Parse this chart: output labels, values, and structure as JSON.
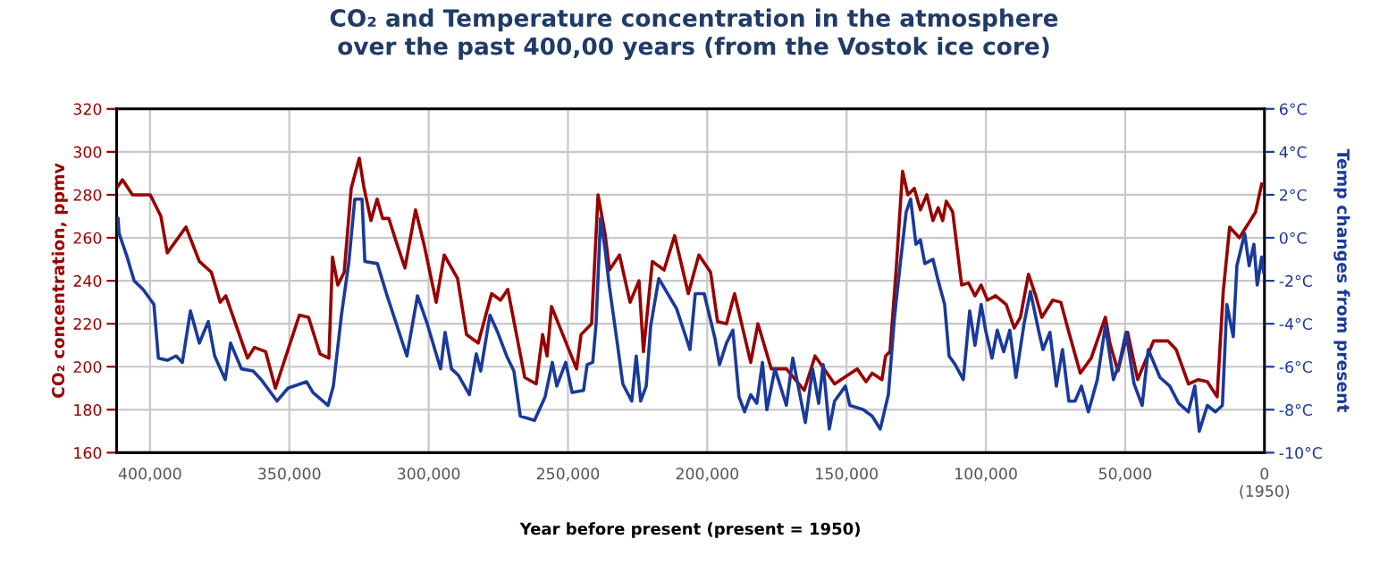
{
  "chart_data": {
    "type": "line",
    "title": "CO₂ and Temperature concentration in the atmosphere\nover the past 400,00 years (from the Vostok ice core)",
    "xlabel": "Year before present (present = 1950)",
    "ylabel": "CO₂ concentration, ppmv",
    "y2label": "Temp changes from present",
    "xlim": [
      412000,
      0
    ],
    "xticks": [
      {
        "value": 400000,
        "label": "400,000"
      },
      {
        "value": 350000,
        "label": "350,000"
      },
      {
        "value": 300000,
        "label": "300,000"
      },
      {
        "value": 250000,
        "label": "250,000"
      },
      {
        "value": 200000,
        "label": "200,000"
      },
      {
        "value": 150000,
        "label": "150,000"
      },
      {
        "value": 100000,
        "label": "100,000"
      },
      {
        "value": 50000,
        "label": "50,000"
      },
      {
        "value": 0,
        "label": "0\n(1950)"
      }
    ],
    "ylim": [
      160,
      320
    ],
    "yticks": [
      160,
      180,
      200,
      220,
      240,
      260,
      280,
      300,
      320
    ],
    "y2lim": [
      -10,
      6
    ],
    "y2ticks": [
      {
        "value": -10,
        "label": "-10°C"
      },
      {
        "value": -8,
        "label": "-8°C"
      },
      {
        "value": -6,
        "label": "-6°C"
      },
      {
        "value": -4,
        "label": "-4°C"
      },
      {
        "value": -2,
        "label": "-2°C"
      },
      {
        "value": 0,
        "label": "0°C"
      },
      {
        "value": 2,
        "label": "2°C"
      },
      {
        "value": 4,
        "label": "4°C"
      },
      {
        "value": 6,
        "label": "6°C"
      }
    ],
    "grid": true,
    "series": [
      {
        "color": "#990000",
        "x": [
          411500,
          409900,
          406300,
          399900,
          396100,
          393800,
          387100,
          382300,
          378000,
          374800,
          372800,
          365000,
          362500,
          358500,
          355000,
          346400,
          343100,
          339000,
          335800,
          334500,
          332600,
          330300,
          327800,
          324900,
          323300,
          320700,
          318500,
          316500,
          314300,
          311100,
          308500,
          304700,
          301500,
          297300,
          294400,
          289600,
          286400,
          282200,
          277400,
          274200,
          271600,
          265500,
          261400,
          259100,
          257500,
          255900,
          246900,
          245300,
          241500,
          239200,
          236700,
          235100,
          231500,
          227700,
          224500,
          222900,
          219700,
          215500,
          211700,
          206800,
          203000,
          198800,
          196300,
          193100,
          190200,
          184400,
          181800,
          177000,
          171600,
          165200,
          161300,
          154300,
          146200,
          143000,
          140800,
          137300,
          136000,
          134400,
          132100,
          129900,
          128000,
          125700,
          123500,
          121200,
          119000,
          117100,
          115500,
          114200,
          111900,
          108700,
          106200,
          103900,
          101700,
          99400,
          96500,
          92700,
          89800,
          87600,
          84700,
          82100,
          79900,
          76000,
          73100,
          70200,
          66100,
          62200,
          57100,
          55500,
          52600,
          49100,
          45500,
          39800,
          34600,
          31700,
          27300,
          23700,
          20500,
          17000,
          14800,
          12500,
          9000,
          6100,
          3200,
          1000
        ],
        "values": [
          284,
          287,
          280,
          280,
          270,
          253,
          265,
          249,
          244,
          230,
          233,
          204,
          209,
          207,
          190,
          224,
          223,
          206,
          204,
          251,
          238,
          244,
          283,
          297,
          284,
          268,
          278,
          269,
          269,
          256,
          246,
          273,
          256,
          230,
          252,
          241,
          215,
          211,
          234,
          231,
          236,
          195,
          192,
          215,
          205,
          228,
          199,
          215,
          220,
          280,
          262,
          245,
          252,
          230,
          240,
          207,
          249,
          245,
          261,
          234,
          252,
          244,
          221,
          220,
          234,
          202,
          220,
          199,
          199,
          189,
          205,
          192,
          199,
          193,
          197,
          194,
          205,
          207,
          247,
          291,
          280,
          283,
          273,
          280,
          268,
          274,
          268,
          277,
          272,
          238,
          239,
          233,
          238,
          231,
          233,
          229,
          218,
          223,
          243,
          233,
          223,
          231,
          230,
          216,
          197,
          204,
          223,
          211,
          198,
          216,
          194,
          212,
          212,
          208,
          192,
          194,
          193,
          186,
          235,
          265,
          260,
          266,
          272,
          285
        ]
      },
      {
        "color": "#1a3a9a",
        "axis": "y2",
        "x": [
          411500,
          411100,
          408200,
          405700,
          402500,
          398600,
          397000,
          393800,
          390600,
          388400,
          385500,
          382300,
          379100,
          376800,
          373000,
          371100,
          367200,
          363000,
          360100,
          354400,
          350500,
          343800,
          341500,
          336100,
          334200,
          331300,
          328700,
          326500,
          323900,
          322900,
          318400,
          314900,
          307800,
          304000,
          300500,
          295700,
          294100,
          291800,
          289300,
          285400,
          282900,
          281300,
          278000,
          275200,
          272000,
          269400,
          267100,
          262000,
          258200,
          255600,
          254000,
          250800,
          248500,
          244400,
          243100,
          241100,
          239900,
          238300,
          236700,
          235100,
          232500,
          230300,
          227100,
          225500,
          223900,
          221900,
          220300,
          217400,
          214200,
          211000,
          206200,
          204300,
          201100,
          197200,
          195600,
          193100,
          190800,
          188600,
          186600,
          184400,
          182200,
          180200,
          178600,
          175700,
          171600,
          169300,
          164800,
          162200,
          160000,
          158400,
          156200,
          154300,
          150400,
          148800,
          144000,
          140800,
          137900,
          135000,
          132800,
          130800,
          128600,
          127000,
          125100,
          123500,
          121900,
          119000,
          117100,
          114800,
          113200,
          111000,
          108100,
          105800,
          103900,
          101700,
          100100,
          97800,
          95900,
          93600,
          91400,
          89200,
          86300,
          84000,
          81100,
          79500,
          77000,
          74700,
          72500,
          70200,
          68000,
          65700,
          63200,
          60000,
          57100,
          54200,
          52000,
          49700,
          46800,
          43900,
          41700,
          37500,
          34000,
          30800,
          27300,
          25000,
          23400,
          20500,
          17600,
          15100,
          13500,
          11200,
          9900,
          7100,
          5500,
          3800,
          2600,
          1000,
          300
        ],
        "values": [
          0.9,
          0.2,
          -0.9,
          -2.0,
          -2.4,
          -3.1,
          -5.6,
          -5.7,
          -5.5,
          -5.8,
          -3.4,
          -4.9,
          -3.9,
          -5.5,
          -6.6,
          -4.9,
          -6.1,
          -6.2,
          -6.6,
          -7.6,
          -7.0,
          -6.7,
          -7.2,
          -7.8,
          -6.9,
          -3.6,
          -1.2,
          1.8,
          1.8,
          -1.1,
          -1.2,
          -2.7,
          -5.5,
          -2.7,
          -4.0,
          -6.1,
          -4.4,
          -6.1,
          -6.4,
          -7.3,
          -5.4,
          -6.2,
          -3.6,
          -4.4,
          -5.5,
          -6.2,
          -8.3,
          -8.5,
          -7.4,
          -5.8,
          -6.9,
          -5.8,
          -7.2,
          -7.1,
          -5.9,
          -5.8,
          -4.0,
          0.9,
          -0.5,
          -2.3,
          -4.7,
          -6.8,
          -7.6,
          -5.5,
          -7.6,
          -6.9,
          -4.1,
          -1.9,
          -2.6,
          -3.3,
          -5.2,
          -2.6,
          -2.6,
          -4.7,
          -5.9,
          -4.9,
          -4.3,
          -7.4,
          -8.1,
          -7.3,
          -7.7,
          -5.8,
          -8.0,
          -6.1,
          -7.8,
          -5.6,
          -8.6,
          -6.1,
          -7.7,
          -5.9,
          -8.9,
          -7.6,
          -6.9,
          -7.8,
          -8.0,
          -8.3,
          -8.9,
          -7.3,
          -3.7,
          -1.3,
          1.2,
          1.8,
          -0.3,
          -0.1,
          -1.2,
          -1.0,
          -2.0,
          -3.1,
          -5.5,
          -5.9,
          -6.6,
          -3.4,
          -5.0,
          -3.1,
          -4.3,
          -5.6,
          -4.3,
          -5.3,
          -4.3,
          -6.5,
          -4.0,
          -2.5,
          -4.3,
          -5.2,
          -4.4,
          -6.9,
          -5.2,
          -7.6,
          -7.6,
          -6.9,
          -8.1,
          -6.6,
          -4.1,
          -6.6,
          -5.8,
          -4.4,
          -6.8,
          -7.8,
          -5.2,
          -6.5,
          -6.9,
          -7.7,
          -8.1,
          -6.9,
          -9.0,
          -7.8,
          -8.1,
          -7.8,
          -3.1,
          -4.6,
          -1.3,
          0.2,
          -1.3,
          -0.3,
          -2.2,
          -0.9,
          -1.6
        ]
      }
    ]
  }
}
